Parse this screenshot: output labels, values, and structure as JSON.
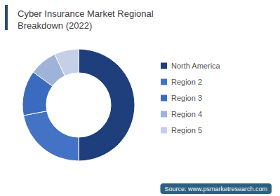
{
  "chart_data": {
    "type": "donut",
    "title": "Cyber Insurance Market Regional\nBreakdown (2022)",
    "categories": [
      "North America",
      "Region 2",
      "Region 3",
      "Region 4",
      "Region 5"
    ],
    "values": [
      50,
      22,
      13,
      8,
      7
    ],
    "colors": [
      "#1f3e7c",
      "#4472c4",
      "#3a6bbf",
      "#9db3d8",
      "#c5cfe8"
    ],
    "legend": "right",
    "annotations": [
      "Source: www.psmarketresearch.com"
    ]
  }
}
